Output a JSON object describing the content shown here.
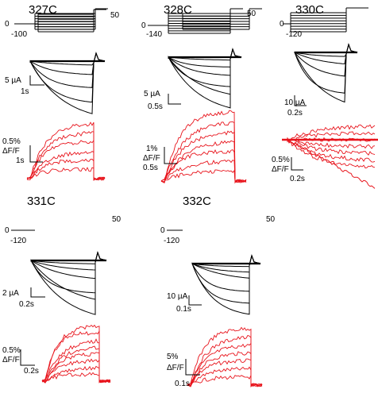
{
  "panels": [
    {
      "id": "327C",
      "title": "327C",
      "protocol": {
        "hold": "0",
        "step_to": "-100",
        "tail": "50"
      },
      "current_scale": {
        "amp": "5 µA",
        "time": "1s"
      },
      "fluor_scale": {
        "amp": "0.5%",
        "unit": "ΔF/F",
        "time": "1s"
      }
    },
    {
      "id": "328C",
      "title": "328C",
      "protocol": {
        "hold": "0",
        "step_to": "-140",
        "tail": "50"
      },
      "current_scale": {
        "amp": "5 µA",
        "time": "0.5s"
      },
      "fluor_scale": {
        "amp": "1%",
        "unit": "ΔF/F",
        "time": "0.5s"
      }
    },
    {
      "id": "330C",
      "title": "330C",
      "protocol": {
        "hold": "0",
        "step_to": "-120",
        "tail": "50"
      },
      "current_scale": {
        "amp": "10 µA",
        "time": "0.2s"
      },
      "fluor_scale": {
        "amp": "0.5%",
        "unit": "ΔF/F",
        "time": "0.2s"
      }
    },
    {
      "id": "331C",
      "title": "331C",
      "protocol": {
        "hold": "0",
        "step_to": "-120",
        "tail": "50"
      },
      "current_scale": {
        "amp": "2 µA",
        "time": "0.2s"
      },
      "fluor_scale": {
        "amp": "0.5%",
        "unit": "ΔF/F",
        "time": "0.2s"
      }
    },
    {
      "id": "332C",
      "title": "332C",
      "protocol": {
        "hold": "0",
        "step_to": "-120",
        "tail": "50"
      },
      "current_scale": {
        "amp": "10 µA",
        "time": "0.1s"
      },
      "fluor_scale": {
        "amp": "5%",
        "unit": "ΔF/F",
        "time": "0.1s"
      }
    }
  ],
  "colors": {
    "current": "#000000",
    "fluorescence": "#e8141c",
    "protocol": "#000000"
  }
}
